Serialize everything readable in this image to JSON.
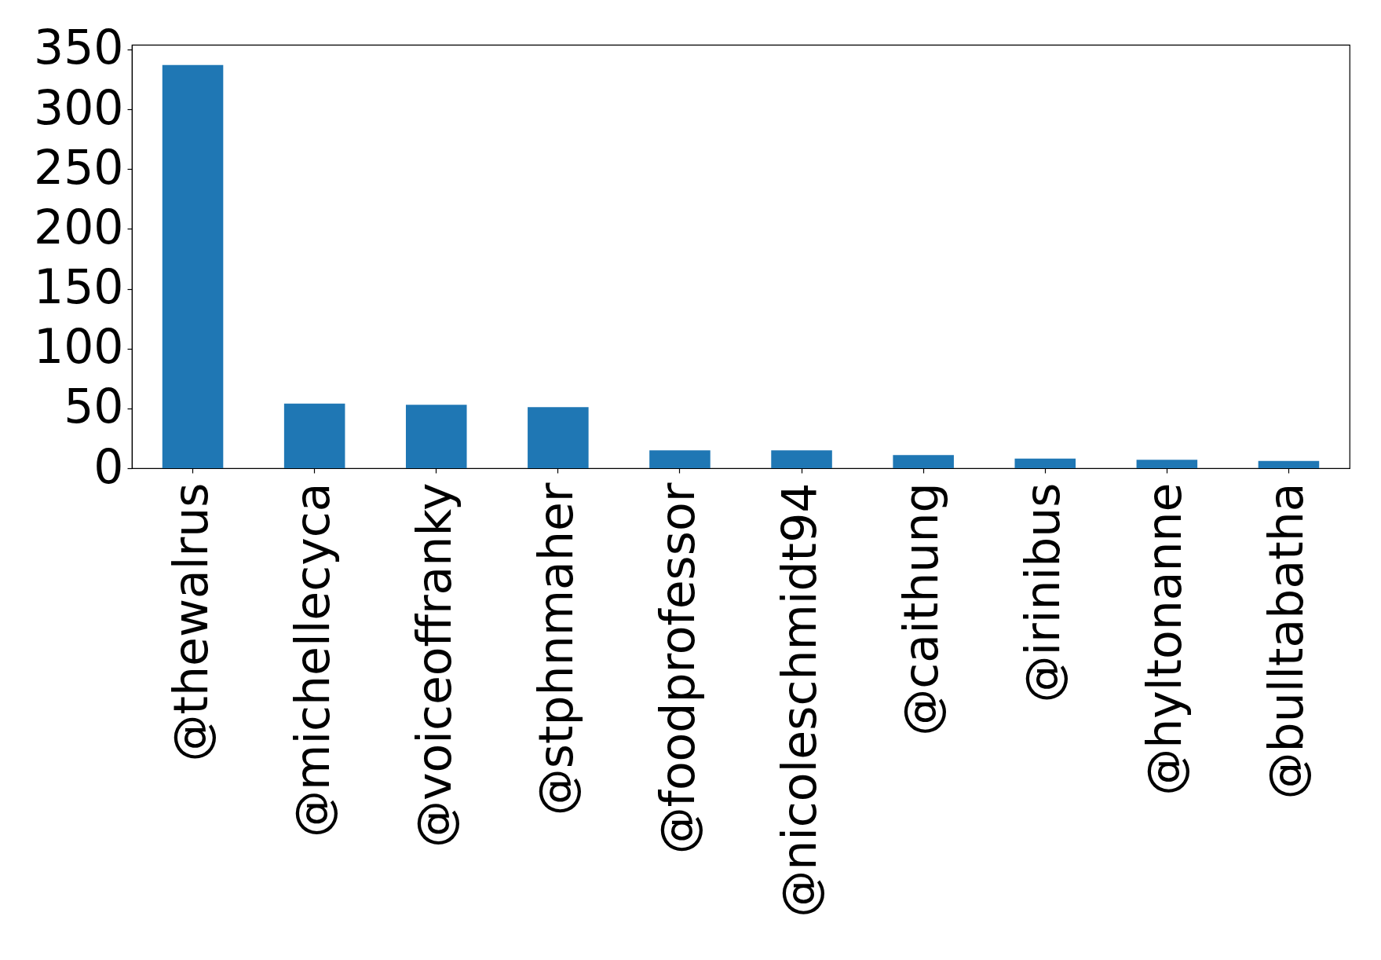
{
  "chart_data": {
    "type": "bar",
    "categories": [
      "@thewalrus",
      "@michellecyca",
      "@voiceoffranky",
      "@stphnmaher",
      "@foodprofessor",
      "@nicoleschmidt94",
      "@caithung",
      "@irinibus",
      "@hyltonanne",
      "@bulltabatha"
    ],
    "values": [
      337,
      54,
      53,
      51,
      15,
      15,
      11,
      8,
      7,
      6
    ],
    "color": "#1f77b4",
    "ylim": [
      0,
      353.85
    ],
    "yticks": [
      0,
      50,
      100,
      150,
      200,
      250,
      300,
      350
    ]
  }
}
